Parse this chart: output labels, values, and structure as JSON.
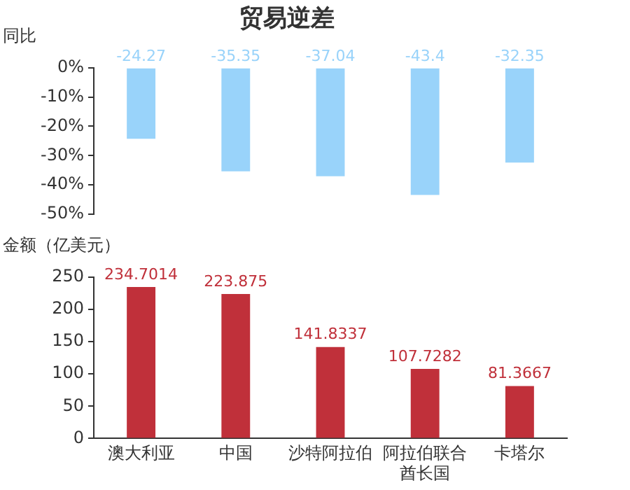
{
  "chart_data": [
    {
      "type": "bar",
      "title": "贸易逆差",
      "ylabel": "同比",
      "categories": [
        "澳大利亚",
        "中国",
        "沙特阿拉伯",
        "阿拉伯联合酋长国",
        "卡塔尔"
      ],
      "tick_labels": "y",
      "values": [
        -24.27,
        -35.35,
        -37.04,
        -43.4,
        -32.35
      ],
      "color": "#99d3fa",
      "data_labels": true,
      "ylim": [
        -50,
        0
      ],
      "yticks": [
        {
          "value": 0,
          "label": "0%"
        },
        {
          "value": -10,
          "label": "-10%"
        },
        {
          "value": -20,
          "label": "-20%"
        },
        {
          "value": -30,
          "label": "-30%"
        },
        {
          "value": -40,
          "label": "-40%"
        },
        {
          "value": -50,
          "label": "-50%"
        }
      ],
      "grid": false,
      "legend": false
    },
    {
      "type": "bar",
      "ylabel": "金额（亿美元）",
      "categories": [
        "澳大利亚",
        "中国",
        "沙特阿拉伯",
        "阿拉伯联合酋长国",
        "卡塔尔"
      ],
      "values": [
        234.7014,
        223.875,
        141.8337,
        107.7282,
        81.3667
      ],
      "color": "#c0303a",
      "data_labels": true,
      "ylim": [
        0,
        250
      ],
      "yticks": [
        0,
        50,
        100,
        150,
        200,
        250
      ],
      "grid": false,
      "legend": false
    }
  ]
}
